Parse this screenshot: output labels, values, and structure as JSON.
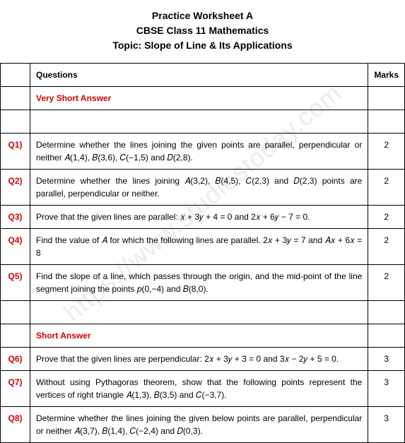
{
  "header": {
    "line1": "Practice Worksheet A",
    "line2": "CBSE Class 11 Mathematics",
    "line3": "Topic: Slope of Line & Its Applications"
  },
  "table": {
    "headers": {
      "qnum": "",
      "question": "Questions",
      "marks": "Marks"
    },
    "sections": {
      "very_short": "Very Short Answer",
      "short": "Short Answer"
    },
    "rows": [
      {
        "qnum": "Q1)",
        "text": "Determine whether the lines joining the given points are parallel, perpendicular or neither 𝐴(1,4), 𝐵(3,6), 𝐶(−1,5) and 𝐷(2,8).",
        "marks": "2"
      },
      {
        "qnum": "Q2)",
        "text": "Determine whether the lines joining 𝐴(3,2), 𝐵(4,5), 𝐶(2,3) and 𝐷(2,3) points are parallel, perpendicular or neither.",
        "marks": "2"
      },
      {
        "qnum": "Q3)",
        "text": "Prove that the given lines are parallel: 𝑥 + 3𝑦 + 4 = 0 and 2𝑥 + 6𝑦 − 7 = 0.",
        "marks": "2"
      },
      {
        "qnum": "Q4)",
        "text": "Find the value of 𝐴 for which the following lines are parallel.\n2𝑥 + 3𝑦 = 7 and 𝐴𝑥 + 6𝑥 = 8",
        "marks": "2"
      },
      {
        "qnum": "Q5)",
        "text": "Find the slope of a line, which passes through the origin, and the mid-point of the line segment joining the points 𝑝(0,−4) and 𝐵(8,0).",
        "marks": "2"
      },
      {
        "qnum": "Q6)",
        "text": "Prove that the given lines are perpendicular: 2𝑥 + 3𝑦 + 3 = 0 and 3𝑥 − 2𝑦 + 5 = 0.",
        "marks": "3"
      },
      {
        "qnum": "Q7)",
        "text": "Without using Pythagoras theorem, show that the following points represent the vertices of right triangle 𝐴(1,3), 𝐵(3,5) and 𝐶(−3,7).",
        "marks": "3"
      },
      {
        "qnum": "Q8)",
        "text": "Determine whether the lines joining the given below points are parallel, perpendicular or neither 𝐴(3,7), 𝐵(1,4), 𝐶(−2,4) and 𝐷(0,3).",
        "marks": "3"
      }
    ]
  },
  "watermark": "https://www.studiestoday.com",
  "colors": {
    "accent": "#d00000",
    "text": "#000000",
    "border": "#000000",
    "background": "#ffffff"
  }
}
